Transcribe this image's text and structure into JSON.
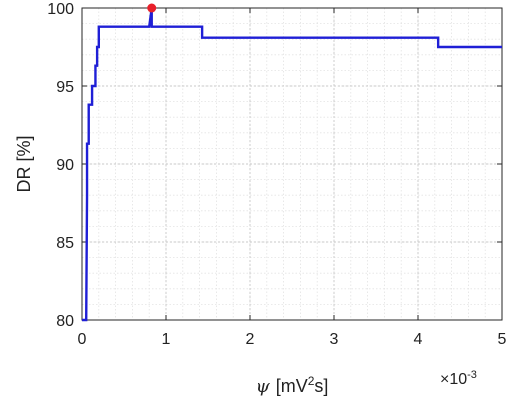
{
  "chart_data": {
    "type": "line",
    "title": "",
    "xlabel": "ψ [mV²s]",
    "xlabel_parts": {
      "symbol": "ψ",
      "pre": "[mV",
      "sup": "2",
      "post": "s]"
    },
    "ylabel": "DR [%]",
    "x_multiplier": "×10",
    "x_multiplier_exponent": "-3",
    "xlim": [
      0,
      5
    ],
    "ylim": [
      80,
      100
    ],
    "xticks": [
      0,
      1,
      2,
      3,
      4,
      5
    ],
    "yticks": [
      80,
      85,
      90,
      95,
      100
    ],
    "grid": true,
    "grid_minor": true,
    "series_color": "#1f1fd6",
    "marker_color": "#e8202a",
    "series": [
      {
        "values_x": [
          0.0,
          0.0,
          0.05,
          0.06,
          0.06,
          0.08,
          0.08,
          0.1,
          0.1,
          0.12,
          0.12,
          0.14,
          0.14,
          0.16,
          0.16,
          0.18,
          0.18,
          0.2,
          0.2,
          0.8,
          0.8,
          0.83,
          0.83,
          0.86,
          0.86,
          1.43,
          1.43,
          4.24,
          4.24,
          5.0
        ],
        "values_y": [
          80.0,
          80.0,
          80.0,
          88.0,
          91.3,
          91.3,
          93.8,
          93.8,
          93.8,
          93.8,
          95.0,
          95.0,
          95.0,
          95.0,
          96.3,
          96.3,
          97.5,
          97.5,
          98.8,
          98.8,
          98.8,
          100.0,
          98.8,
          98.8,
          98.8,
          98.8,
          98.1,
          98.1,
          97.5,
          97.5
        ]
      }
    ],
    "highlight_point": {
      "x": 0.83,
      "y": 100
    }
  }
}
